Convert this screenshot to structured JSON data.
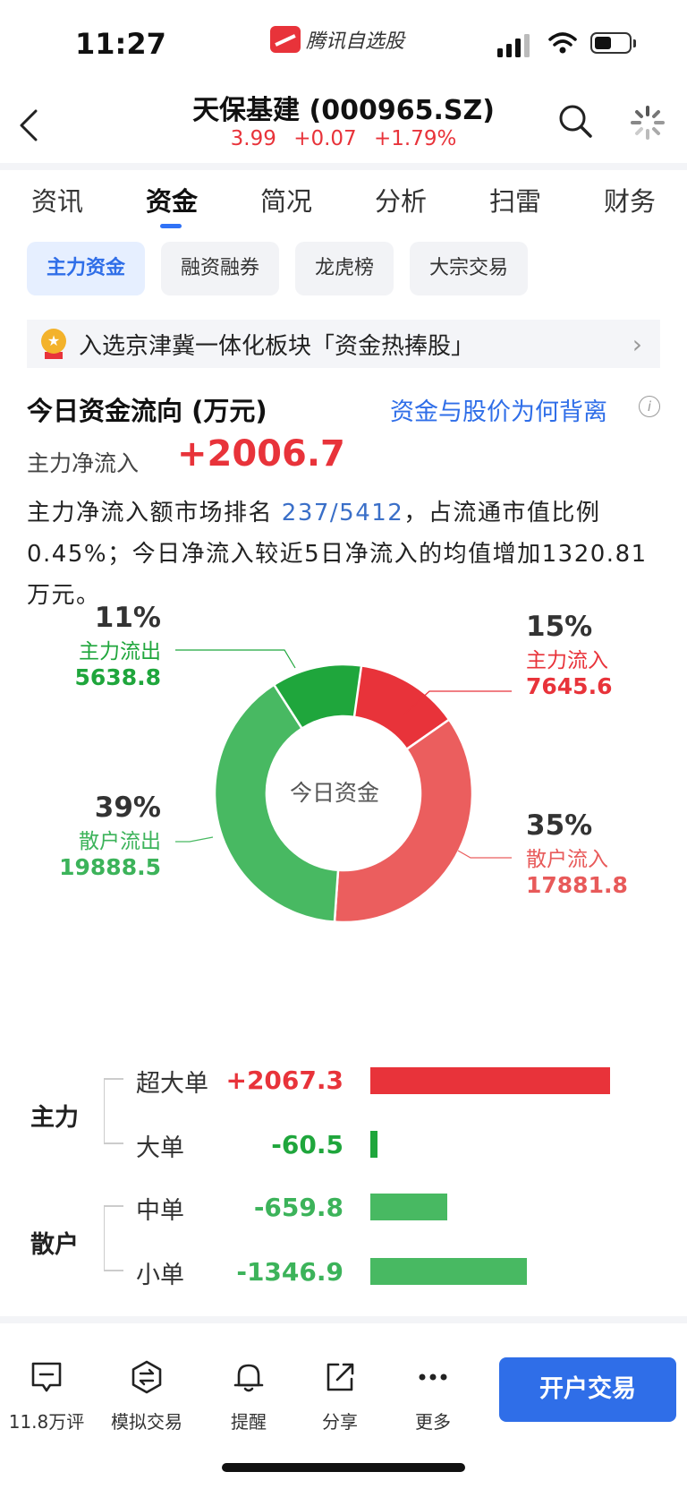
{
  "status_bar": {
    "time": "11:27",
    "app_name": "腾讯自选股"
  },
  "header": {
    "title": "天保基建 (000965.SZ)",
    "price": "3.99",
    "change": "+0.07",
    "change_pct": "+1.79%",
    "quote_color": "#e8333a"
  },
  "tabs": [
    {
      "label": "资讯"
    },
    {
      "label": "资金"
    },
    {
      "label": "简况"
    },
    {
      "label": "分析"
    },
    {
      "label": "扫雷"
    },
    {
      "label": "财务"
    }
  ],
  "active_tab": "资金",
  "subtabs": [
    {
      "label": "主力资金"
    },
    {
      "label": "融资融券"
    },
    {
      "label": "龙虎榜"
    },
    {
      "label": "大宗交易"
    }
  ],
  "banner": {
    "text": "入选京津冀一体化板块「资金热捧股」",
    "icon": "medal-icon"
  },
  "flow": {
    "title": "今日资金流向 (万元)",
    "why_link": "资金与股价为何背离",
    "net_label": "主力净流入",
    "net_value": "+2006.7",
    "summary_1": "主力净流入额市场排名",
    "rank": "237/5412",
    "summary_2": "，占流通市值比例0.45%；今日净流入较近5日净流入的均值增加1320.81万元。"
  },
  "donut": {
    "center_label": "今日资金",
    "segments": [
      {
        "name": "主力流入",
        "pct": "15%",
        "value": "7645.6",
        "share": 0.1531,
        "color": "#e8333a"
      },
      {
        "name": "散户流入",
        "pct": "35%",
        "value": "17881.8",
        "share": 0.358,
        "color": "#eb5e5e"
      },
      {
        "name": "散户流出",
        "pct": "39%",
        "value": "19888.5",
        "share": 0.3982,
        "color": "#48b962"
      },
      {
        "name": "主力流出",
        "pct": "11%",
        "value": "5638.8",
        "share": 0.1129,
        "color": "#1fa63c"
      }
    ]
  },
  "orders": {
    "groups": [
      {
        "label": "主力"
      },
      {
        "label": "散户"
      }
    ],
    "rows": [
      {
        "name": "超大单",
        "value": "+2067.3",
        "num": 2067.3,
        "color": "#e8333a"
      },
      {
        "name": "大单",
        "value": "-60.5",
        "num": -60.5,
        "color": "#1fa63c"
      },
      {
        "name": "中单",
        "value": "-659.8",
        "num": -659.8,
        "color": "#48b962"
      },
      {
        "name": "小单",
        "value": "-1346.9",
        "num": -1346.9,
        "color": "#48b962"
      }
    ]
  },
  "bottom_bar": {
    "items": [
      {
        "label": "11.8万评",
        "icon": "comment-icon"
      },
      {
        "label": "模拟交易",
        "icon": "exchange-icon"
      },
      {
        "label": "提醒",
        "icon": "bell-icon"
      },
      {
        "label": "分享",
        "icon": "share-icon"
      },
      {
        "label": "更多",
        "icon": "more-icon"
      }
    ],
    "trade_button": "开户交易"
  }
}
